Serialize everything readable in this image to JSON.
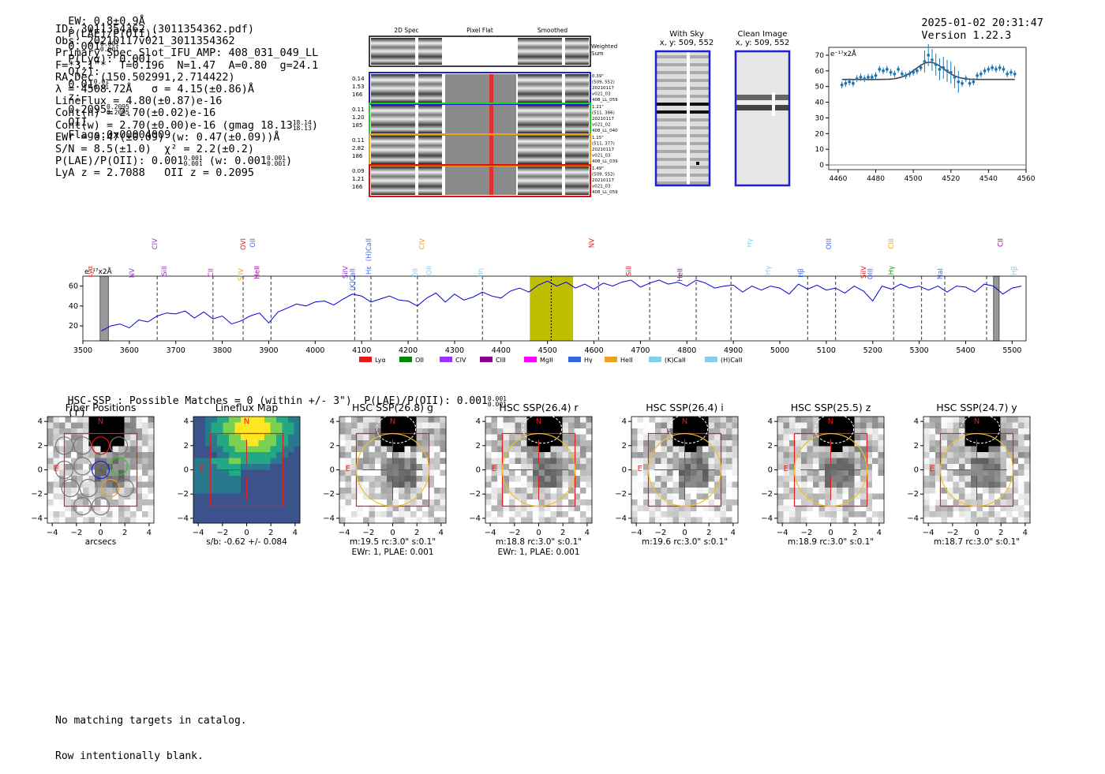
{
  "header": {
    "ew": "EW: 0.8±0.9Å",
    "plae_label": "P(LAE)/P(OII):",
    "plae_val": "0.001",
    "plae_hi": "0.001",
    "plae_lo": "0.001",
    "plya": "P(Lyα): 0.001",
    "qz_label": "Q(z):",
    "qz_val": "0.01",
    "qz_hi": "0.01",
    "qz_lo": "0.01",
    "z_label": "z:",
    "z_val": "0.2095",
    "z_hi": "0.2095",
    "z_lo": "0.2095",
    "z_line": "OII",
    "flags": "Flags:0x00004009",
    "timestamp": "2025-01-02 20:31:47",
    "version": "Version 1.22.3"
  },
  "info": {
    "id": "ID: 3011354362 (3011354362.pdf)",
    "obs": "Obs: 20210117v021_3011354362",
    "primary": "Primary Spec_Slot_IFU_AMP: 408_031_049_LL",
    "fwhm": "F=*3.1\"*  T=0.196  N=1.47  A=0.80  g=24.1",
    "radec": "RA,Dec (150.502991,2.714422)",
    "lambda": "λ = 4508.72Å   σ = 4.15(±0.86)Å",
    "lineflux": "LineFlux = 4.80(±0.87)e-16",
    "contn": "Cont(n) = 2.70(±0.02)e-16",
    "contw": "Cont(w) = 2.70(±0.00)e-16 (gmag 18.13",
    "contw_hi": "18.14",
    "contw_lo": "18.13",
    "ewr": "EWr = 0.47(±0.09) (w: 0.47(±0.09))Å",
    "sn": "S/N = 8.5(±1.0)  χ² = 2.2(±0.2)",
    "plae": "P(LAE)/P(OII): 0.001",
    "plae_hi": "0.001",
    "plae_lo": "0.001",
    "plae_w": "(w: 0.001",
    "plae_w_hi": "0.001",
    "plae_w_lo": "0.001",
    "lya": "LyA z = 2.7088   OII z = 0.2095"
  },
  "cutouts": {
    "col_2d": "2D Spec",
    "col_flat": "Pixel Flat",
    "col_smooth": "Smoothed",
    "weighted": "Weighted",
    "sum": "Sum",
    "rows": [
      {
        "a": "0.14",
        "b": "1.53",
        "c": "166",
        "d1": "0.39\"",
        "d2": "(509, 552)",
        "d3": "20210117",
        "d4": "v021_03",
        "d5": "408_LL_059",
        "color": "#1f1fd0"
      },
      {
        "a": "0.11",
        "b": "1.20",
        "c": "185",
        "d1": "1.21\"",
        "d2": "(511, 386)",
        "d3": "20210117",
        "d4": "v021_02",
        "d5": "408_LL_040",
        "color": "#22cc22"
      },
      {
        "a": "0.11",
        "b": "2.82",
        "c": "186",
        "d1": "1.15\"",
        "d2": "(511, 377)",
        "d3": "20210117",
        "d4": "v021_03",
        "d5": "408_LL_039",
        "color": "#f0a020"
      },
      {
        "a": "0.09",
        "b": "1.21",
        "c": "166",
        "d1": "1.49\"",
        "d2": "(509, 552)",
        "d3": "20210117",
        "d4": "v021_03",
        "d5": "408_LL_059",
        "color": "#e01010"
      }
    ]
  },
  "sky": {
    "with_sky": "With Sky",
    "with_sky_xy": "x, y: 509, 552",
    "clean": "Clean Image",
    "clean_xy": "x, y: 509, 552"
  },
  "hsc": {
    "title": "HSC-SSP : Possible Matches = 0 (within +/- 3\")  P(LAE)/P(OII): 0.001",
    "title_hi": "0.001",
    "title_lo": "0.001",
    "title_band": "(r)"
  },
  "footer": {
    "line1": "No matching targets in catalog.",
    "line2": "Row intentionally blank."
  },
  "chart_data": [
    {
      "type": "scatter",
      "name": "zoom-spectrum",
      "unit_label": "e⁻¹⁷x2Å",
      "xlim": [
        4455,
        4560
      ],
      "ylim": [
        -3,
        75
      ],
      "xticks": [
        4460,
        4480,
        4500,
        4520,
        4540,
        4560
      ],
      "yticks": [
        0,
        10,
        20,
        30,
        40,
        50,
        60,
        70
      ],
      "x": [
        4462,
        4464,
        4466,
        4468,
        4470,
        4472,
        4474,
        4476,
        4478,
        4480,
        4482,
        4484,
        4486,
        4488,
        4490,
        4492,
        4494,
        4496,
        4498,
        4500,
        4502,
        4504,
        4506,
        4508,
        4510,
        4512,
        4514,
        4516,
        4518,
        4520,
        4522,
        4524,
        4526,
        4528,
        4530,
        4532,
        4534,
        4536,
        4538,
        4540,
        4542,
        4544,
        4546,
        4548,
        4550,
        4552,
        4554
      ],
      "y": [
        51,
        52,
        53,
        52,
        55,
        56,
        55,
        56,
        56,
        57,
        61,
        60,
        61,
        59,
        58,
        61,
        58,
        57,
        58,
        59,
        60,
        62,
        66,
        70,
        67,
        64,
        61,
        62,
        60,
        59,
        56,
        53,
        52,
        55,
        52,
        53,
        57,
        58,
        60,
        61,
        62,
        61,
        62,
        61,
        58,
        59,
        58
      ],
      "model": "gaussian fit: continuum 54.5, amplitude 11, centre 4508.7, sigma 4.15"
    },
    {
      "type": "line",
      "name": "full-spectrum",
      "unit_label": "e⁻¹⁷x2Å",
      "xlim": [
        3500,
        5530
      ],
      "ylim": [
        5,
        70
      ],
      "xticks": [
        3500,
        3600,
        3700,
        3800,
        3900,
        4000,
        4100,
        4200,
        4300,
        4400,
        4500,
        4600,
        4700,
        4800,
        4900,
        5000,
        5100,
        5200,
        5300,
        5400,
        5500
      ],
      "yticks": [
        20,
        40,
        60
      ],
      "x": [
        3540,
        3560,
        3580,
        3600,
        3620,
        3640,
        3660,
        3680,
        3700,
        3720,
        3740,
        3760,
        3780,
        3800,
        3820,
        3840,
        3860,
        3880,
        3900,
        3920,
        3940,
        3960,
        3980,
        4000,
        4020,
        4040,
        4060,
        4080,
        4100,
        4120,
        4140,
        4160,
        4180,
        4200,
        4220,
        4240,
        4260,
        4280,
        4300,
        4320,
        4340,
        4360,
        4380,
        4400,
        4420,
        4440,
        4460,
        4480,
        4500,
        4520,
        4540,
        4560,
        4580,
        4600,
        4620,
        4640,
        4660,
        4680,
        4700,
        4720,
        4740,
        4760,
        4780,
        4800,
        4820,
        4840,
        4860,
        4880,
        4900,
        4920,
        4940,
        4960,
        4980,
        5000,
        5020,
        5040,
        5060,
        5080,
        5100,
        5120,
        5140,
        5160,
        5180,
        5200,
        5220,
        5240,
        5260,
        5280,
        5300,
        5320,
        5340,
        5360,
        5380,
        5400,
        5420,
        5440,
        5460,
        5480,
        5500,
        5520
      ],
      "y": [
        15,
        20,
        22,
        18,
        26,
        24,
        30,
        33,
        32,
        35,
        28,
        34,
        27,
        30,
        22,
        25,
        30,
        33,
        23,
        34,
        38,
        42,
        40,
        44,
        45,
        41,
        47,
        52,
        50,
        44,
        47,
        50,
        46,
        45,
        40,
        48,
        53,
        44,
        52,
        46,
        49,
        54,
        50,
        48,
        55,
        58,
        54,
        61,
        65,
        60,
        64,
        58,
        62,
        57,
        63,
        60,
        64,
        66,
        59,
        63,
        66,
        62,
        64,
        60,
        66,
        63,
        58,
        60,
        61,
        54,
        60,
        56,
        60,
        58,
        52,
        62,
        57,
        61,
        56,
        58,
        53,
        60,
        55,
        45,
        60,
        57,
        62,
        58,
        60,
        56,
        60,
        54,
        60,
        59,
        54,
        62,
        60,
        52,
        58,
        60
      ],
      "lines": [
        {
          "label": "Lyα",
          "x": 3520,
          "color": "#e41a1c"
        },
        {
          "label": "NV",
          "x": 3610,
          "color": "#9933cc"
        },
        {
          "label": "CIV",
          "x": 3660,
          "color": "#9933cc"
        },
        {
          "label": "SiII",
          "x": 3680,
          "color": "#9933cc"
        },
        {
          "label": "CII",
          "x": 3780,
          "color": "#e0e"
        },
        {
          "label": "OVI",
          "x": 3850,
          "color": "#e41a1c"
        },
        {
          "label": "HeII",
          "x": 3880,
          "color": "#990099"
        },
        {
          "label": "SiIV",
          "x": 3845,
          "color": "#f0a020"
        },
        {
          "label": "OII",
          "x": 3870,
          "color": "#4466ee"
        },
        {
          "label": "SiIV",
          "x": 4070,
          "color": "#9933cc"
        },
        {
          "label": "(K)CaII",
          "x": 4085,
          "color": "#4466ee"
        },
        {
          "label": "(H)CaII",
          "x": 4120,
          "color": "#4466ee"
        },
        {
          "label": "Hε",
          "x": 4120,
          "color": "#4466ee"
        },
        {
          "label": "OII",
          "x": 4220,
          "color": "#87ceeb"
        },
        {
          "label": "CIV",
          "x": 4235,
          "color": "#f0a020"
        },
        {
          "label": "OII",
          "x": 4250,
          "color": "#87ceeb"
        },
        {
          "label": "Hη",
          "x": 4360,
          "color": "#87ceeb"
        },
        {
          "label": "NV",
          "x": 4600,
          "color": "#e41a1c"
        },
        {
          "label": "SiII",
          "x": 4680,
          "color": "#e41a1c"
        },
        {
          "label": "HeII",
          "x": 4790,
          "color": "#990099"
        },
        {
          "label": "Hγ",
          "x": 4940,
          "color": "#87ceeb"
        },
        {
          "label": "Hγ",
          "x": 4980,
          "color": "#87ceeb"
        },
        {
          "label": "Hβ",
          "x": 5050,
          "color": "#4466ee"
        },
        {
          "label": "OIII",
          "x": 5110,
          "color": "#4466ee"
        },
        {
          "label": "SiIV",
          "x": 5185,
          "color": "#e41a1c"
        },
        {
          "label": "OIII",
          "x": 5200,
          "color": "#4466ee"
        },
        {
          "label": "CIII",
          "x": 5245,
          "color": "#f0a020"
        },
        {
          "label": "Hγ",
          "x": 5245,
          "color": "#00aa00"
        },
        {
          "label": "NaI",
          "x": 5350,
          "color": "#4466ee"
        },
        {
          "label": "CII",
          "x": 5480,
          "color": "#990099"
        },
        {
          "label": "Hβ",
          "x": 5510,
          "color": "#87ceeb"
        }
      ],
      "dashed_x": [
        3660,
        3780,
        3845,
        3905,
        4085,
        4120,
        4220,
        4360,
        4610,
        4720,
        4820,
        4895,
        5060,
        5120,
        5245,
        5305,
        5355,
        5445
      ],
      "highlight": [
        4462,
        4555
      ],
      "legend": [
        "Lyα",
        "OII",
        "CIV",
        "CIII",
        "MgII",
        "Hγ",
        "HeII",
        "(K)CaII",
        "(H)CaII"
      ],
      "legend_colors": [
        "#e41a1c",
        "#008800",
        "#9933ff",
        "#880088",
        "#ff00ff",
        "#3366dd",
        "#f0a020",
        "#87ceeb",
        "#87ceeb"
      ]
    },
    {
      "type": "heatmap",
      "name": "hsc-panels",
      "xticks": [
        -4,
        -2,
        0,
        2,
        4
      ],
      "yticks": [
        -4,
        -2,
        0,
        2,
        4
      ],
      "panels": [
        {
          "title": "Fiber Positions",
          "cap1": "arcsecs",
          "cap2": ""
        },
        {
          "title": "Lineflux Map",
          "cap1": "s/b: -0.62 +/- 0.084",
          "cap2": ""
        },
        {
          "title": "HSC SSP(26.8) g",
          "cap1": "m:19.5 rc:3.0\"  s:0.1\"",
          "cap2": "EWr: 1, PLAE: 0.001"
        },
        {
          "title": "HSC SSP(26.4) r",
          "cap1": "m:18.8 rc:3.0\"  s:0.1\"",
          "cap2": "EWr: 1, PLAE: 0.001"
        },
        {
          "title": "HSC SSP(26.4) i",
          "cap1": "m:19.6 rc:3.0\"  s:0.1\"",
          "cap2": ""
        },
        {
          "title": "HSC SSP(25.5) z",
          "cap1": "m:18.9 rc:3.0\"  s:0.1\"",
          "cap2": ""
        },
        {
          "title": "HSC SSP(24.7) y",
          "cap1": "m:18.7 rc:3.0\"  s:0.1\"",
          "cap2": ""
        }
      ],
      "north": "N",
      "east": "E"
    }
  ]
}
